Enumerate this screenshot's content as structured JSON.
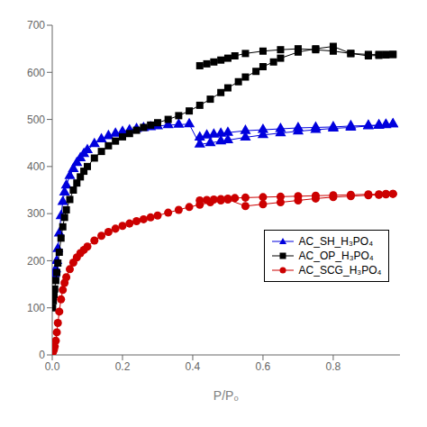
{
  "chart_data": {
    "type": "line",
    "xlabel": "P/P₀",
    "xlim": [
      0.0,
      0.99
    ],
    "ylim": [
      0,
      700
    ],
    "xticks": [
      {
        "value": 0,
        "label": "0.0"
      },
      0.2,
      0.4,
      0.6,
      0.8
    ],
    "yticks": [
      0,
      100,
      200,
      300,
      400,
      500,
      600,
      700
    ],
    "grid": false,
    "legend": "right",
    "series": [
      {
        "name": "AC_SH_H₃PO₄",
        "color": "#0000dd",
        "marker": "triangle",
        "x": [
          0.001,
          0.003,
          0.005,
          0.007,
          0.01,
          0.013,
          0.016,
          0.02,
          0.025,
          0.03,
          0.035,
          0.04,
          0.05,
          0.06,
          0.07,
          0.08,
          0.09,
          0.1,
          0.12,
          0.14,
          0.16,
          0.18,
          0.2,
          0.22,
          0.24,
          0.26,
          0.28,
          0.3,
          0.33,
          0.36,
          0.39,
          0.42,
          0.45,
          0.48,
          0.5,
          0.55,
          0.6,
          0.65,
          0.7,
          0.75,
          0.8,
          0.85,
          0.9,
          0.93,
          0.95,
          0.97
        ],
        "values": [
          158,
          162,
          166,
          172,
          182,
          200,
          225,
          258,
          295,
          325,
          345,
          360,
          380,
          395,
          408,
          418,
          427,
          435,
          448,
          458,
          465,
          470,
          474,
          477,
          480,
          482,
          484,
          486,
          488,
          489,
          490,
          447,
          450,
          454,
          456,
          462,
          467,
          471,
          475,
          478,
          481,
          483,
          486,
          487,
          488,
          490
        ]
      },
      {
        "color": "#0000dd",
        "marker": "triangle",
        "x": [
          0.97,
          0.95,
          0.93,
          0.9,
          0.85,
          0.8,
          0.75,
          0.7,
          0.65,
          0.6,
          0.55,
          0.5,
          0.48,
          0.46,
          0.44,
          0.42
        ],
        "values": [
          490,
          489,
          488,
          487,
          486,
          484,
          483,
          482,
          480,
          478,
          476,
          472,
          470,
          468,
          466,
          462
        ]
      },
      {
        "name": "AC_OP_H₃PO₄",
        "color": "#000000",
        "marker": "square",
        "x": [
          0.001,
          0.003,
          0.005,
          0.007,
          0.01,
          0.013,
          0.016,
          0.02,
          0.025,
          0.03,
          0.035,
          0.04,
          0.05,
          0.06,
          0.07,
          0.08,
          0.09,
          0.1,
          0.12,
          0.14,
          0.16,
          0.18,
          0.2,
          0.22,
          0.24,
          0.26,
          0.28,
          0.3,
          0.33,
          0.36,
          0.39,
          0.42,
          0.45,
          0.48,
          0.5,
          0.53,
          0.55,
          0.58,
          0.6,
          0.63,
          0.65,
          0.7,
          0.75,
          0.8,
          0.85,
          0.9,
          0.93,
          0.95,
          0.97
        ],
        "values": [
          100,
          115,
          128,
          140,
          158,
          175,
          195,
          218,
          248,
          272,
          292,
          308,
          330,
          350,
          365,
          378,
          390,
          400,
          418,
          432,
          444,
          454,
          463,
          470,
          477,
          483,
          488,
          493,
          500,
          508,
          518,
          530,
          543,
          557,
          567,
          580,
          590,
          602,
          612,
          622,
          630,
          643,
          650,
          655,
          640,
          635,
          636,
          637,
          638
        ]
      },
      {
        "color": "#000000",
        "marker": "square",
        "x": [
          0.97,
          0.95,
          0.93,
          0.9,
          0.85,
          0.8,
          0.75,
          0.7,
          0.65,
          0.6,
          0.55,
          0.52,
          0.5,
          0.48,
          0.46,
          0.44,
          0.42
        ],
        "values": [
          638,
          638,
          638,
          638,
          640,
          645,
          648,
          650,
          648,
          645,
          640,
          635,
          630,
          626,
          622,
          618,
          614
        ]
      },
      {
        "name": "AC_SCG_H₃PO₄",
        "color": "#cc0000",
        "marker": "circle",
        "x": [
          0.001,
          0.003,
          0.005,
          0.007,
          0.01,
          0.013,
          0.016,
          0.02,
          0.025,
          0.03,
          0.035,
          0.04,
          0.05,
          0.06,
          0.07,
          0.08,
          0.09,
          0.1,
          0.12,
          0.14,
          0.16,
          0.18,
          0.2,
          0.22,
          0.24,
          0.26,
          0.28,
          0.3,
          0.33,
          0.36,
          0.39,
          0.42,
          0.45,
          0.48,
          0.5,
          0.55,
          0.6,
          0.65,
          0.7,
          0.75,
          0.8,
          0.85,
          0.9,
          0.93,
          0.95,
          0.97
        ],
        "values": [
          5,
          8,
          12,
          18,
          30,
          48,
          68,
          92,
          118,
          138,
          153,
          165,
          182,
          196,
          207,
          216,
          223,
          230,
          243,
          253,
          261,
          268,
          274,
          279,
          284,
          288,
          292,
          296,
          302,
          308,
          314,
          319,
          324,
          328,
          330,
          316,
          320,
          324,
          328,
          332,
          335,
          337,
          339,
          340,
          341,
          342
        ]
      },
      {
        "color": "#cc0000",
        "marker": "circle",
        "x": [
          0.97,
          0.95,
          0.93,
          0.9,
          0.85,
          0.8,
          0.75,
          0.7,
          0.65,
          0.6,
          0.55,
          0.52,
          0.5,
          0.48,
          0.46,
          0.44,
          0.42
        ],
        "values": [
          342,
          342,
          341,
          341,
          340,
          339,
          338,
          337,
          336,
          335,
          334,
          333,
          332,
          331,
          330,
          329,
          328
        ]
      }
    ]
  }
}
